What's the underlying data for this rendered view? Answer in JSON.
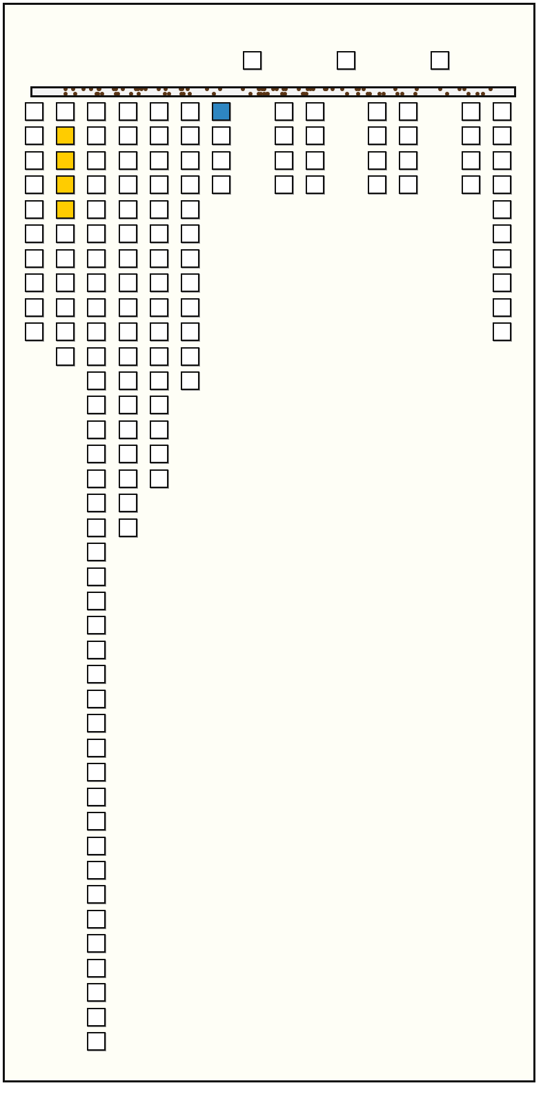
{
  "colors": {
    "background": "#fefef6",
    "empty_cell": "#ffffff",
    "highlight_yellow": "#ffcc00",
    "highlight_blue": "#2e86c1",
    "dots": "#5a3515"
  },
  "top_slots": 3,
  "columns": [
    {
      "cells": 10,
      "highlight": []
    },
    {
      "cells": 11,
      "highlight": [
        1,
        2,
        3,
        4
      ],
      "highlight_color": "yellow"
    },
    {
      "cells": 39,
      "highlight": []
    },
    {
      "cells": 18,
      "highlight": []
    },
    {
      "cells": 16,
      "highlight": []
    },
    {
      "cells": 12,
      "highlight": []
    },
    {
      "cells": 4,
      "highlight": [
        0
      ],
      "highlight_color": "blue"
    },
    {
      "cells": 0,
      "highlight": []
    },
    {
      "cells": 4,
      "highlight": []
    },
    {
      "cells": 4,
      "highlight": []
    },
    {
      "cells": 0,
      "highlight": []
    },
    {
      "cells": 4,
      "highlight": []
    },
    {
      "cells": 4,
      "highlight": []
    },
    {
      "cells": 0,
      "highlight": []
    },
    {
      "cells": 4,
      "highlight": []
    },
    {
      "cells": 10,
      "highlight": []
    }
  ]
}
